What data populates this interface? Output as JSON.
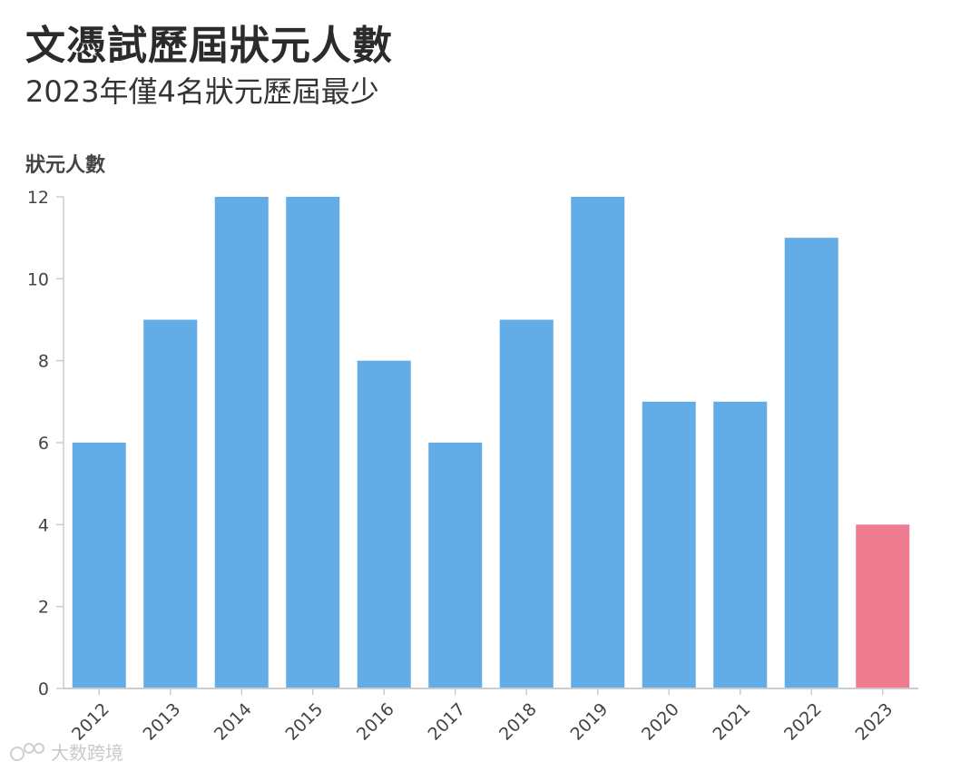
{
  "header": {
    "title": "文憑試歷屆狀元人數",
    "subtitle": "2023年僅4名狀元歷屆最少"
  },
  "watermark": {
    "text": "大数跨境"
  },
  "colors": {
    "bar": "#62ace7",
    "highlight": "#ee7b90",
    "grid": "#e6e6e6",
    "axis": "#cccccc"
  },
  "chart_data": {
    "type": "bar",
    "title": "文憑試歷屆狀元人數",
    "subtitle": "2023年僅4名狀元歷屆最少",
    "xlabel": "",
    "ylabel": "狀元人數",
    "categories": [
      "2012",
      "2013",
      "2014",
      "2015",
      "2016",
      "2017",
      "2018",
      "2019",
      "2020",
      "2021",
      "2022",
      "2023"
    ],
    "values": [
      6,
      9,
      12,
      12,
      8,
      6,
      9,
      12,
      7,
      7,
      11,
      4
    ],
    "highlight_category": "2023",
    "ylim": [
      0,
      12
    ],
    "yticks": [
      0,
      2,
      4,
      6,
      8,
      10,
      12
    ],
    "grid": false
  }
}
